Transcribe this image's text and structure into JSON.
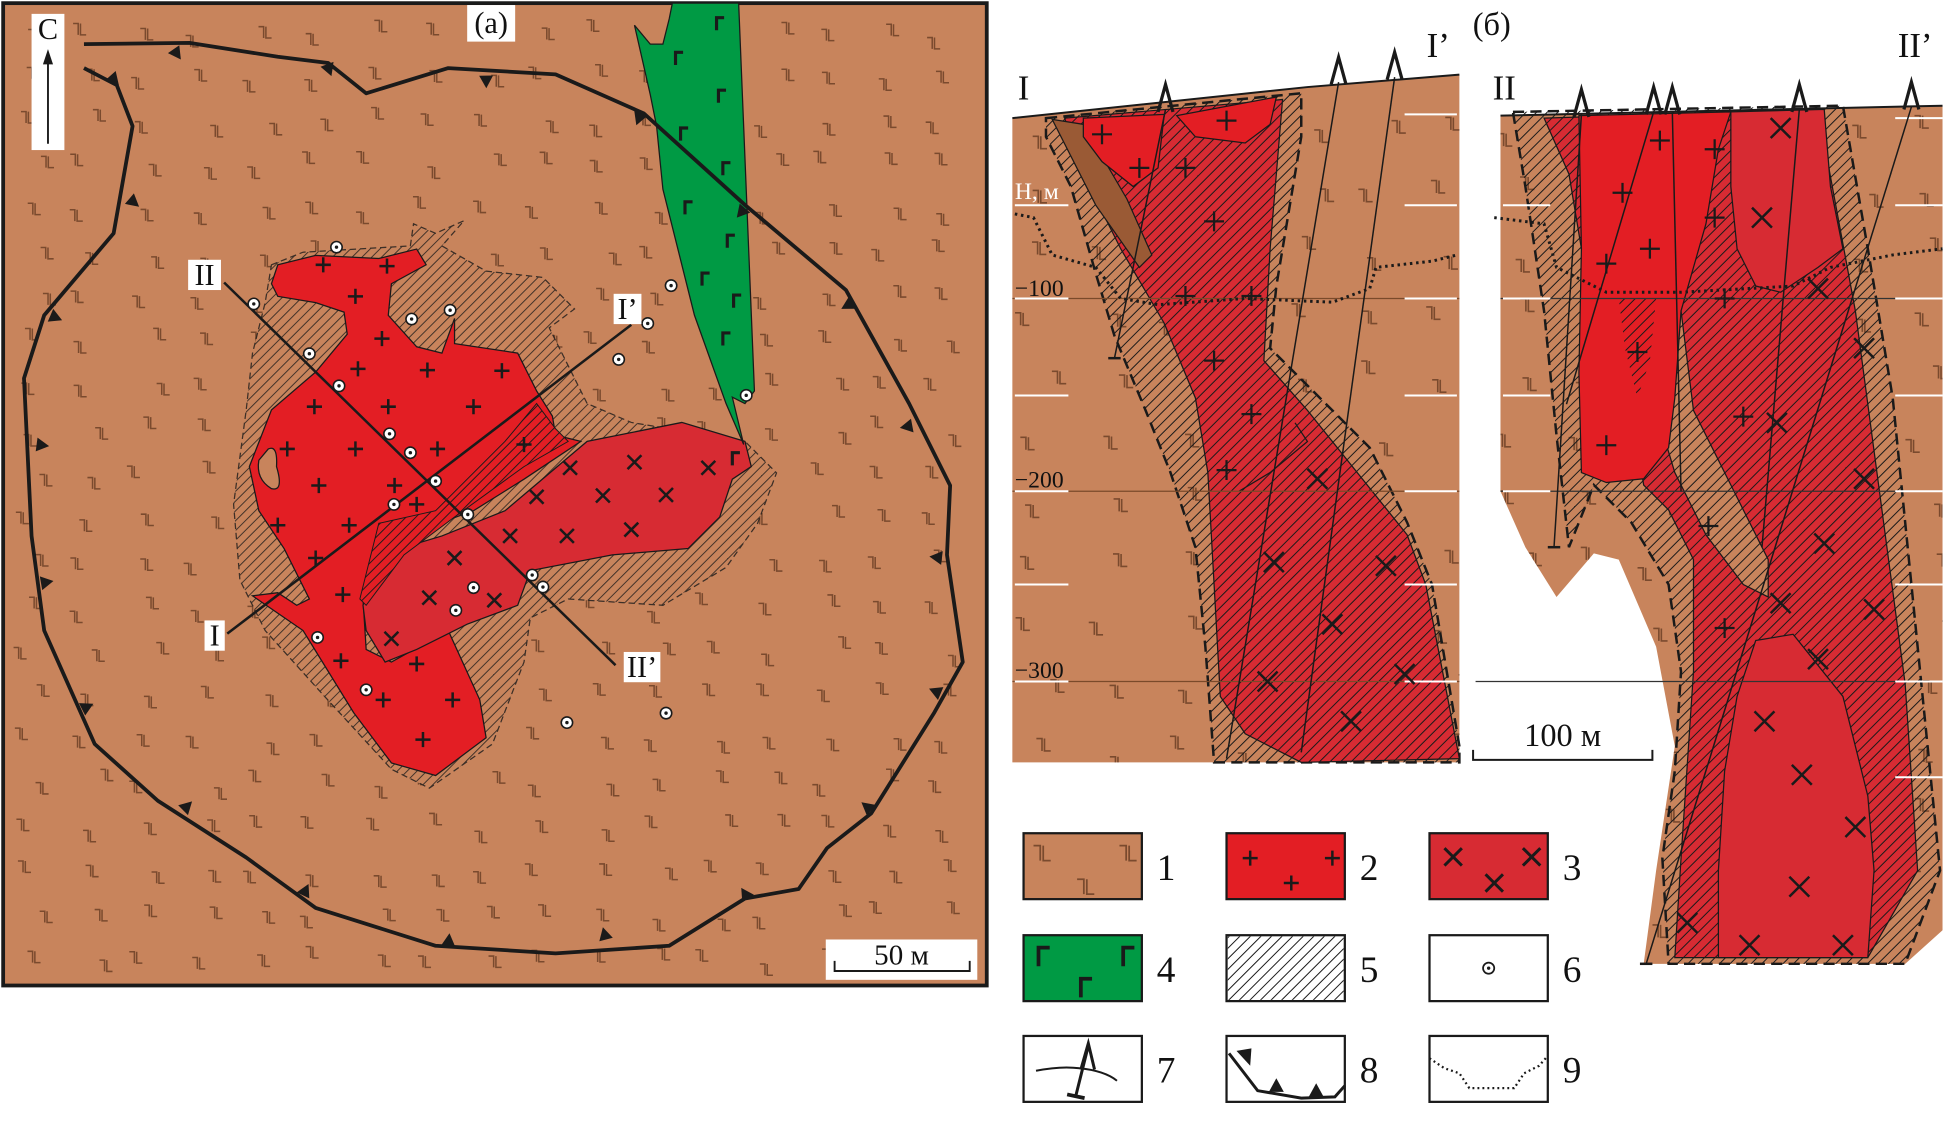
{
  "colors": {
    "host_rock": "#c8845c",
    "granite": "#e31e24",
    "granosyenite": "#d72b33",
    "gabbro_dike": "#009a44",
    "line": "#1a1a1a",
    "hatch": "#1a1a1a"
  },
  "map": {
    "panel_label": "(a)",
    "north_label": "С",
    "scale_label": "50 м",
    "section_labels": {
      "II_start": "II",
      "I_end": "I’",
      "I_start": "I",
      "II_end": "II’"
    }
  },
  "sections": {
    "panel_label": "(б)",
    "section1": {
      "start_label": "I",
      "end_label": "I’"
    },
    "section2": {
      "start_label": "II",
      "end_label": "II’"
    },
    "depth_axis": {
      "title": "Н, м",
      "ticks": [
        "−100",
        "−200",
        "−300"
      ]
    },
    "scale_label": "100 м"
  },
  "legend": {
    "items": [
      {
        "number": "1",
        "pattern": "host-rock-basalt"
      },
      {
        "number": "2",
        "pattern": "granite-plus"
      },
      {
        "number": "3",
        "pattern": "granosyenite-cross"
      },
      {
        "number": "4",
        "pattern": "gabbro-dike"
      },
      {
        "number": "5",
        "pattern": "hatched-alteration"
      },
      {
        "number": "6",
        "pattern": "sample-point"
      },
      {
        "number": "7",
        "pattern": "drill-hole"
      },
      {
        "number": "8",
        "pattern": "thrust-boundary"
      },
      {
        "number": "9",
        "pattern": "dotted-boundary"
      }
    ]
  }
}
